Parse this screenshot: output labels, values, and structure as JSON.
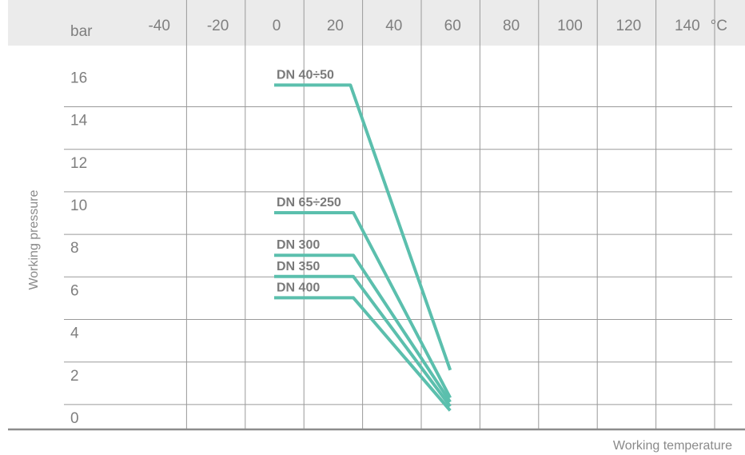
{
  "chart_data": {
    "type": "line",
    "title": "",
    "xlabel": "Working temperature",
    "ylabel": "Working pressure",
    "x_unit": "°C",
    "y_unit": "bar",
    "x_ticks": [
      "-40",
      "-20",
      "0",
      "20",
      "40",
      "60",
      "80",
      "100",
      "120",
      "140"
    ],
    "y_ticks": [
      "16",
      "14",
      "12",
      "10",
      "8",
      "6",
      "4",
      "2",
      "0"
    ],
    "xlim": [
      -50,
      150
    ],
    "ylim": [
      0,
      16
    ],
    "grid": true,
    "colors": {
      "line": "#5bbfad",
      "header": "#ebebeb",
      "grid": "#9a9a9a",
      "text": "#7f7f7f"
    },
    "series": [
      {
        "name": "DN 40÷50",
        "points": [
          [
            0,
            16
          ],
          [
            26,
            16
          ],
          [
            60,
            2.6
          ]
        ]
      },
      {
        "name": "DN 65÷250",
        "points": [
          [
            0,
            10
          ],
          [
            27,
            10
          ],
          [
            60,
            1.3
          ]
        ]
      },
      {
        "name": "DN 300",
        "points": [
          [
            0,
            8
          ],
          [
            27,
            8
          ],
          [
            60,
            1.1
          ]
        ]
      },
      {
        "name": "DN 350",
        "points": [
          [
            0,
            7
          ],
          [
            27,
            7
          ],
          [
            60,
            0.9
          ]
        ]
      },
      {
        "name": "DN 400",
        "points": [
          [
            0,
            6
          ],
          [
            27,
            6
          ],
          [
            60,
            0.7
          ]
        ]
      }
    ]
  }
}
